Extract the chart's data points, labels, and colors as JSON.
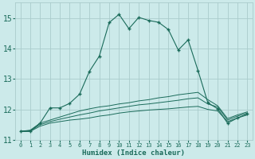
{
  "xlabel": "Humidex (Indice chaleur)",
  "background_color": "#cceaea",
  "grid_color": "#aacccc",
  "line_color": "#1a6b5a",
  "xlim": [
    -0.5,
    23.5
  ],
  "ylim": [
    11,
    15.5
  ],
  "yticks": [
    11,
    12,
    13,
    14,
    15
  ],
  "xticks": [
    0,
    1,
    2,
    3,
    4,
    5,
    6,
    7,
    8,
    9,
    10,
    11,
    12,
    13,
    14,
    15,
    16,
    17,
    18,
    19,
    20,
    21,
    22,
    23
  ],
  "main_x": [
    0,
    1,
    2,
    3,
    4,
    5,
    6,
    7,
    8,
    9,
    10,
    11,
    12,
    13,
    14,
    15,
    16,
    17,
    18,
    19,
    20,
    21,
    22,
    23
  ],
  "main_y": [
    11.28,
    11.28,
    11.55,
    12.05,
    12.05,
    12.2,
    12.5,
    13.25,
    13.75,
    14.85,
    15.12,
    14.65,
    15.02,
    14.92,
    14.86,
    14.62,
    13.95,
    14.28,
    13.28,
    12.22,
    12.02,
    11.55,
    11.72,
    11.85
  ],
  "flat1_x": [
    0,
    1,
    2,
    3,
    4,
    5,
    6,
    7,
    8,
    9,
    10,
    11,
    12,
    13,
    14,
    15,
    16,
    17,
    18,
    19,
    20,
    21,
    22,
    23
  ],
  "flat1_y": [
    11.28,
    11.28,
    11.45,
    11.55,
    11.6,
    11.65,
    11.68,
    11.72,
    11.78,
    11.82,
    11.88,
    11.92,
    11.95,
    11.98,
    12.0,
    12.02,
    12.05,
    12.08,
    12.1,
    12.0,
    11.95,
    11.6,
    11.72,
    11.82
  ],
  "flat2_x": [
    0,
    1,
    2,
    3,
    4,
    5,
    6,
    7,
    8,
    9,
    10,
    11,
    12,
    13,
    14,
    15,
    16,
    17,
    18,
    19,
    20,
    21,
    22,
    23
  ],
  "flat2_y": [
    11.28,
    11.3,
    11.5,
    11.6,
    11.68,
    11.75,
    11.82,
    11.88,
    11.95,
    12.0,
    12.05,
    12.1,
    12.15,
    12.18,
    12.22,
    12.26,
    12.3,
    12.35,
    12.38,
    12.18,
    12.08,
    11.65,
    11.78,
    11.88
  ],
  "flat3_x": [
    0,
    1,
    2,
    3,
    4,
    5,
    6,
    7,
    8,
    9,
    10,
    11,
    12,
    13,
    14,
    15,
    16,
    17,
    18,
    19,
    20,
    21,
    22,
    23
  ],
  "flat3_y": [
    11.28,
    11.32,
    11.55,
    11.65,
    11.75,
    11.85,
    11.95,
    12.02,
    12.08,
    12.12,
    12.18,
    12.22,
    12.28,
    12.32,
    12.38,
    12.42,
    12.48,
    12.52,
    12.56,
    12.32,
    12.12,
    11.7,
    11.82,
    11.92
  ]
}
